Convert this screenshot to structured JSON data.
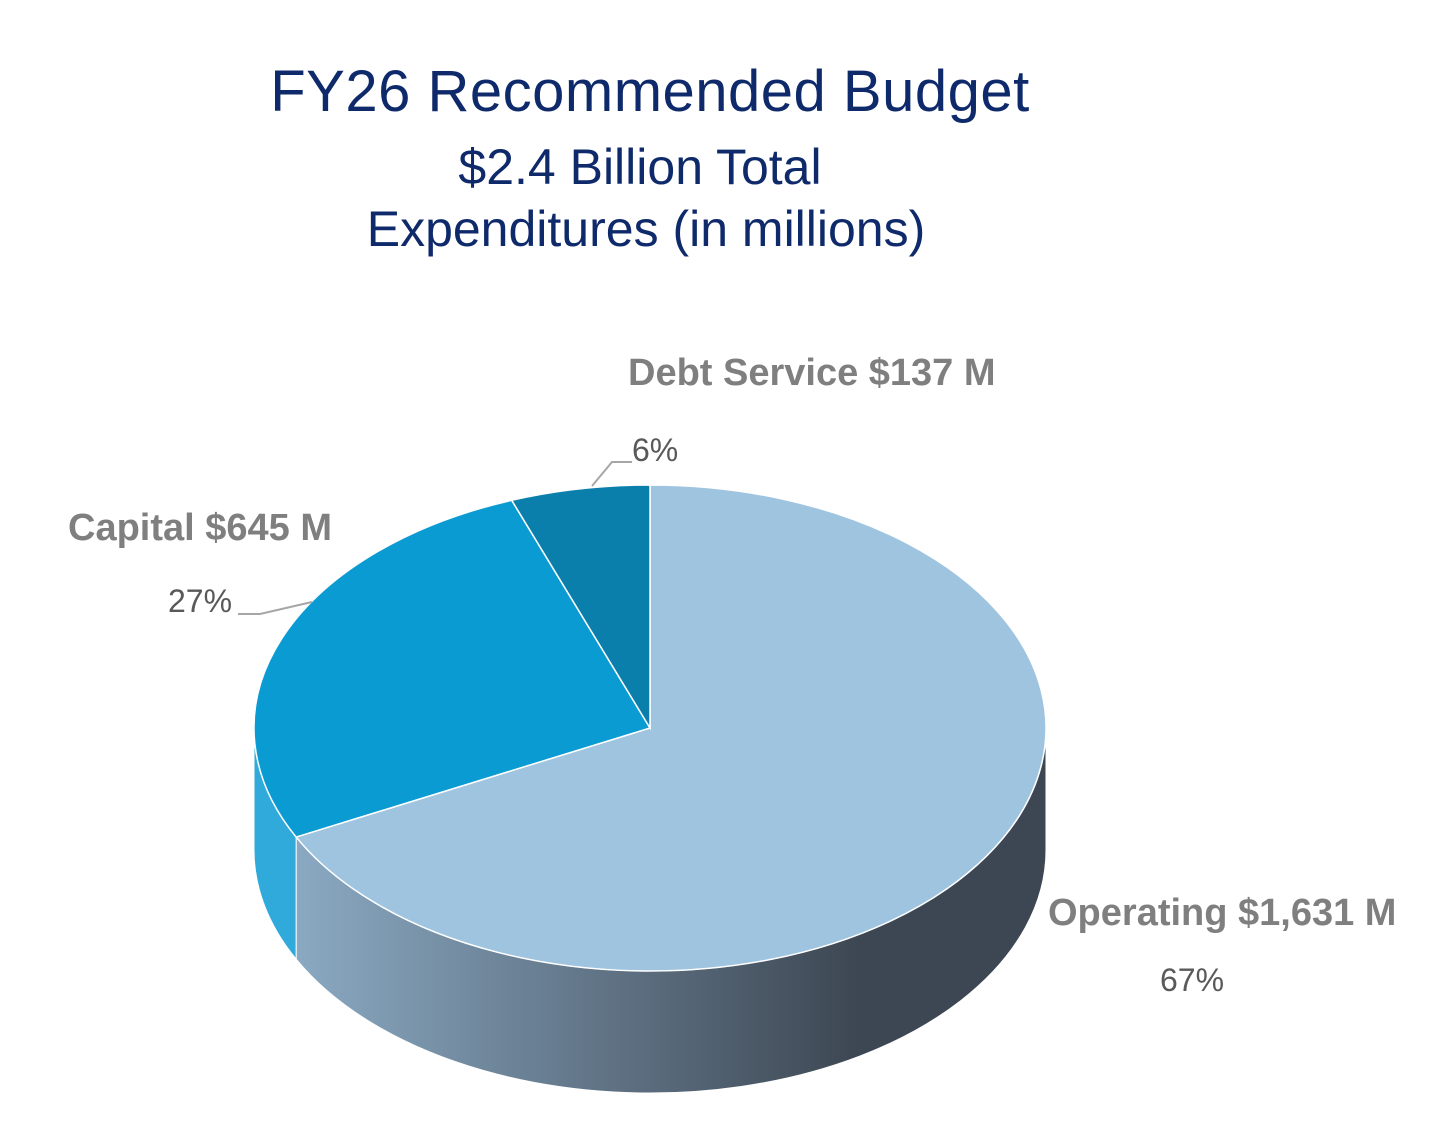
{
  "titles": {
    "line1": "FY26 Recommended Budget",
    "line2": "$2.4 Billion Total",
    "line3": "Expenditures (in millions)"
  },
  "chart_data": {
    "type": "pie",
    "title": "FY26 Recommended Budget",
    "subtitle": "$2.4 Billion Total Expenditures (in millions)",
    "style": "3d",
    "slices": [
      {
        "label": "Operating $1,631 M",
        "value": 1631,
        "percent": 67,
        "percent_label": "67%",
        "color": "#9fc4e0"
      },
      {
        "label": "Capital $645 M",
        "value": 645,
        "percent": 27,
        "percent_label": "27%",
        "color": "#0b9bd3"
      },
      {
        "label": "Debt Service $137 M",
        "value": 137,
        "percent": 6,
        "percent_label": "6%",
        "color": "#0a7fac"
      }
    ],
    "side_color_light": "#8aa9c2",
    "side_color_dark": "#3d4753",
    "label_color": "#7f7f7f",
    "title_color": "#0f2a6b"
  }
}
